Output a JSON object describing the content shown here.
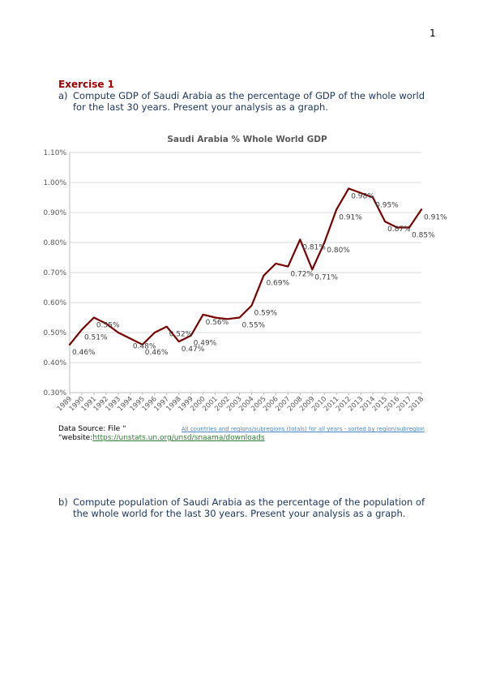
{
  "page": {
    "number": "1"
  },
  "exercise": {
    "title": "Exercise 1",
    "part_a": {
      "marker": "a)",
      "text": "Compute GDP of Saudi Arabia as the percentage of GDP of the whole world for the last 30 years. Present your analysis as a graph."
    },
    "part_b": {
      "marker": "b)",
      "text": "Compute population of Saudi Arabia as the percentage of the population of the whole world for the last 30 years. Present your analysis as a graph."
    }
  },
  "source": {
    "label": "Data Source: File “",
    "file_link": "All countries and regions/subregions (totals) for all years - sorted by region/subregion",
    "website_prefix": "“website:",
    "website_link": "https://unstats.un.org/unsd/snaama/downloads"
  },
  "colors": {
    "series": "#7b0000",
    "title": "#595959",
    "grid": "#d9d9d9",
    "axis_text": "#595959"
  },
  "chart_data": {
    "type": "line",
    "title": "Saudi Arabia % Whole World GDP",
    "xlabel": "",
    "ylabel": "",
    "x": [
      "1989",
      "1990",
      "1991",
      "1992",
      "1993",
      "1994",
      "1995",
      "1996",
      "1997",
      "1998",
      "1999",
      "2000",
      "2001",
      "2002",
      "2003",
      "2004",
      "2005",
      "2006",
      "2007",
      "2008",
      "2009",
      "2010",
      "2011",
      "2012",
      "2013",
      "2014",
      "2015",
      "2016",
      "2017",
      "2018"
    ],
    "values": [
      0.46,
      0.51,
      0.55,
      0.53,
      0.5,
      0.48,
      0.46,
      0.5,
      0.52,
      0.47,
      0.49,
      0.56,
      0.55,
      0.545,
      0.55,
      0.59,
      0.69,
      0.73,
      0.72,
      0.81,
      0.71,
      0.8,
      0.91,
      0.98,
      0.965,
      0.95,
      0.87,
      0.85,
      0.85,
      0.91
    ],
    "labels": [
      "0.46%",
      "0.51%",
      "0.55%",
      "",
      "",
      "0.48%",
      "0.46%",
      "",
      "0.52%",
      "0.47%",
      "0.49%",
      "0.56%",
      "",
      "",
      "0.55%",
      "0.59%",
      "0.69%",
      "",
      "0.72%",
      "0.81%",
      "0.71%",
      "0.80%",
      "0.91%",
      "0.98%",
      "",
      "0.95%",
      "0.87%",
      "",
      "0.85%",
      "0.91%"
    ],
    "y_ticks": [
      "0.30%",
      "0.40%",
      "0.50%",
      "0.60%",
      "0.70%",
      "0.80%",
      "0.90%",
      "1.00%",
      "1.10%"
    ],
    "ylim": [
      0.3,
      1.1
    ],
    "grid": true,
    "legend": "none"
  }
}
